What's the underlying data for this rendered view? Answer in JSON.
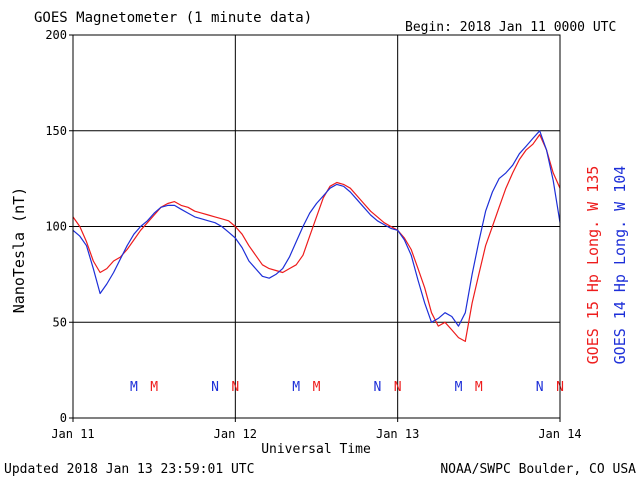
{
  "chart_data": {
    "type": "line",
    "title": "GOES Magnetometer (1 minute data)",
    "begin_label": "Begin:  2018 Jan 11 0000 UTC",
    "xlabel": "Universal Time",
    "ylabel": "NanoTesla (nT)",
    "xlim": [
      0,
      72
    ],
    "ylim": [
      0,
      200
    ],
    "y_ticks": [
      0,
      50,
      100,
      150,
      200
    ],
    "x_ticks": [
      {
        "x": 0,
        "label": "Jan 11"
      },
      {
        "x": 24,
        "label": "Jan 12"
      },
      {
        "x": 48,
        "label": "Jan 13"
      },
      {
        "x": 72,
        "label": "Jan 14"
      }
    ],
    "grid": true,
    "legend_position": "right-vertical",
    "series": [
      {
        "name": "GOES 15 Hp  Long. W 135",
        "color": "#ee1c1c",
        "x": [
          0,
          1,
          2,
          3,
          4,
          5,
          6,
          7,
          8,
          9,
          10,
          11,
          12,
          13,
          14,
          15,
          16,
          17,
          18,
          19,
          20,
          21,
          22,
          23,
          24,
          25,
          26,
          27,
          28,
          29,
          30,
          31,
          32,
          33,
          34,
          35,
          36,
          37,
          38,
          39,
          40,
          41,
          42,
          43,
          44,
          45,
          46,
          47,
          48,
          49,
          50,
          51,
          52,
          53,
          54,
          55,
          56,
          57,
          58,
          59,
          60,
          61,
          62,
          63,
          64,
          65,
          66,
          67,
          68,
          69,
          70,
          71,
          72
        ],
        "values": [
          105,
          100,
          92,
          82,
          76,
          78,
          82,
          84,
          88,
          93,
          98,
          102,
          106,
          110,
          112,
          113,
          111,
          110,
          108,
          107,
          106,
          105,
          104,
          103,
          100,
          96,
          90,
          85,
          80,
          78,
          77,
          76,
          78,
          80,
          85,
          95,
          105,
          115,
          121,
          123,
          122,
          120,
          116,
          112,
          108,
          105,
          102,
          100,
          98,
          94,
          88,
          78,
          68,
          55,
          48,
          50,
          46,
          42,
          40,
          60,
          75,
          90,
          100,
          110,
          120,
          128,
          135,
          140,
          143,
          148,
          140,
          128,
          120
        ]
      },
      {
        "name": "GOES 14 Hp  Long. W 104",
        "color": "#1d2fd8",
        "x": [
          0,
          1,
          2,
          3,
          4,
          5,
          6,
          7,
          8,
          9,
          10,
          11,
          12,
          13,
          14,
          15,
          16,
          17,
          18,
          19,
          20,
          21,
          22,
          23,
          24,
          25,
          26,
          27,
          28,
          29,
          30,
          31,
          32,
          33,
          34,
          35,
          36,
          37,
          38,
          39,
          40,
          41,
          42,
          43,
          44,
          45,
          46,
          47,
          48,
          49,
          50,
          51,
          52,
          53,
          54,
          55,
          56,
          57,
          58,
          59,
          60,
          61,
          62,
          63,
          64,
          65,
          66,
          67,
          68,
          69,
          70,
          71,
          72
        ],
        "values": [
          98,
          95,
          90,
          78,
          65,
          70,
          76,
          83,
          90,
          96,
          100,
          103,
          107,
          110,
          111,
          111,
          109,
          107,
          105,
          104,
          103,
          102,
          100,
          97,
          94,
          89,
          82,
          78,
          74,
          73,
          75,
          78,
          84,
          92,
          100,
          107,
          112,
          116,
          120,
          122,
          121,
          118,
          114,
          110,
          106,
          103,
          101,
          99,
          98,
          93,
          85,
          72,
          60,
          50,
          52,
          55,
          53,
          48,
          55,
          75,
          92,
          108,
          118,
          125,
          128,
          132,
          138,
          142,
          146,
          150,
          140,
          124,
          102
        ]
      }
    ],
    "markers": [
      {
        "x": 9,
        "label": "M",
        "color": "#1d2fd8"
      },
      {
        "x": 12,
        "label": "M",
        "color": "#ee1c1c"
      },
      {
        "x": 21,
        "label": "N",
        "color": "#1d2fd8"
      },
      {
        "x": 24,
        "label": "N",
        "color": "#ee1c1c"
      },
      {
        "x": 33,
        "label": "M",
        "color": "#1d2fd8"
      },
      {
        "x": 36,
        "label": "M",
        "color": "#ee1c1c"
      },
      {
        "x": 45,
        "label": "N",
        "color": "#1d2fd8"
      },
      {
        "x": 48,
        "label": "N",
        "color": "#ee1c1c"
      },
      {
        "x": 57,
        "label": "M",
        "color": "#1d2fd8"
      },
      {
        "x": 60,
        "label": "M",
        "color": "#ee1c1c"
      },
      {
        "x": 69,
        "label": "N",
        "color": "#1d2fd8"
      },
      {
        "x": 72,
        "label": "N",
        "color": "#ee1c1c"
      }
    ]
  },
  "footer": {
    "updated": "Updated 2018 Jan 13 23:59:01 UTC",
    "credit": "NOAA/SWPC Boulder, CO USA"
  }
}
